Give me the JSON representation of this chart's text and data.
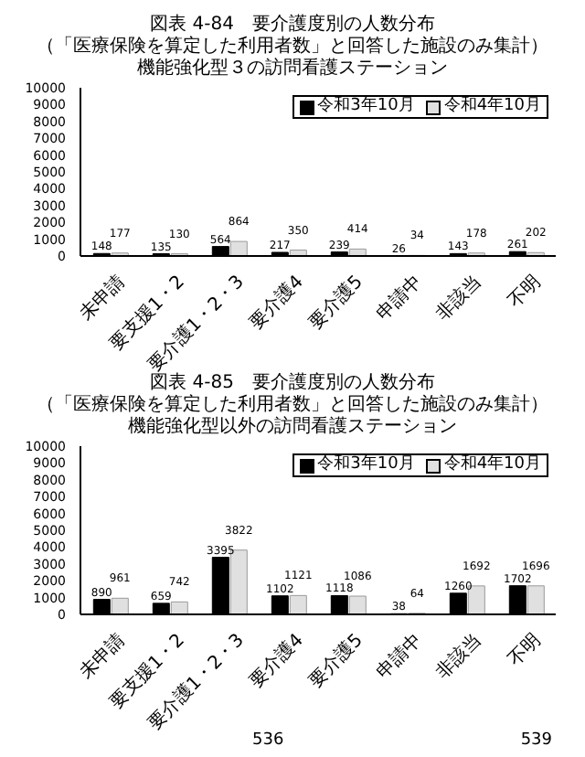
{
  "chart_data": [
    {
      "type": "bar",
      "title": "図表 4-84　要介護度別の人数分布",
      "subtitle": "（「医療保険を算定した利用者数」と回答した施設のみ集計）機能強化型３の訪問看護ステーション",
      "categories": [
        "未申請",
        "要支援1・2",
        "要介護1・2・3",
        "要介護4",
        "要介護5",
        "申請中",
        "非該当",
        "不明"
      ],
      "series": [
        {
          "name": "令和3年10月",
          "color": "#000000",
          "values": [
            148,
            135,
            564,
            217,
            239,
            26,
            143,
            261
          ]
        },
        {
          "name": "令和4年10月",
          "color": "#e0e0e0",
          "values": [
            177,
            130,
            864,
            350,
            414,
            34,
            178,
            202
          ]
        }
      ],
      "ylim": [
        0,
        10000
      ],
      "yticks": [
        0,
        1000,
        2000,
        3000,
        4000,
        5000,
        6000,
        7000,
        8000,
        9000,
        10000
      ],
      "grid": false,
      "legend": "top right",
      "data_labels": true
    },
    {
      "type": "bar",
      "title": "図表 4-85　要介護度別の人数分布",
      "subtitle": "（「医療保険を算定した利用者数」と回答した施設のみ集計）機能強化型以外の訪問看護ステーション",
      "categories": [
        "未申請",
        "要支援1・2",
        "要介護1・2・3",
        "要介護4",
        "要介護5",
        "申請中",
        "非該当",
        "不明"
      ],
      "series": [
        {
          "name": "令和3年10月",
          "color": "#000000",
          "values": [
            890,
            659,
            3395,
            1102,
            1118,
            38,
            1260,
            1702
          ]
        },
        {
          "name": "令和4年10月",
          "color": "#e0e0e0",
          "values": [
            961,
            742,
            3822,
            1121,
            1086,
            64,
            1692,
            1696
          ]
        }
      ],
      "ylim": [
        0,
        10000
      ],
      "yticks": [
        0,
        1000,
        2000,
        3000,
        4000,
        5000,
        6000,
        7000,
        8000,
        9000,
        10000
      ],
      "grid": false,
      "legend": "top right",
      "data_labels": true,
      "annotations": [
        "536",
        "539"
      ]
    }
  ]
}
